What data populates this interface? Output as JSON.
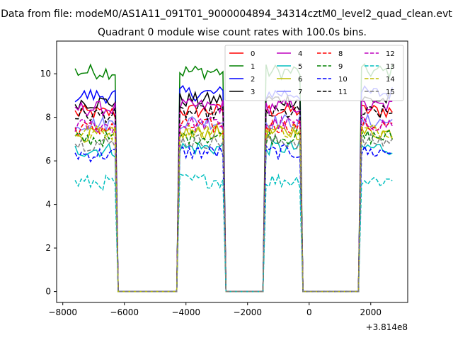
{
  "figure": {
    "suptitle": "Data from file: modeM0/AS1A11_091T01_9000004894_34314cztM0_level2_quad_clean.evt"
  },
  "chart_data": {
    "type": "line",
    "title": "Quadrant 0 module wise count rates with 100.0s bins.",
    "xlabel": "",
    "ylabel": "",
    "x_offset_label": "+3.814e8",
    "xlim": [
      -8200,
      3200
    ],
    "ylim": [
      -0.5,
      11.5
    ],
    "x_ticks": [
      -8000,
      -6000,
      -4000,
      -2000,
      0,
      2000
    ],
    "x_tick_labels": [
      "−8000",
      "−6000",
      "−4000",
      "−2000",
      "0",
      "2000"
    ],
    "y_ticks": [
      0,
      2,
      4,
      6,
      8,
      10
    ],
    "y_tick_labels": [
      "0",
      "2",
      "4",
      "6",
      "8",
      "10"
    ],
    "bin_width": 100,
    "segments": [
      [
        -7600,
        -6300
      ],
      [
        -4200,
        -2800
      ],
      [
        -1400,
        -300
      ],
      [
        1700,
        2700
      ]
    ],
    "legend": {
      "position": "top-right",
      "columns": 4
    },
    "series": [
      {
        "name": "0",
        "color": "#ff0000",
        "style": "solid",
        "level": 8.2
      },
      {
        "name": "1",
        "color": "#008000",
        "style": "solid",
        "level": 10.0
      },
      {
        "name": "2",
        "color": "#0000ff",
        "style": "solid",
        "level": 9.0
      },
      {
        "name": "3",
        "color": "#000000",
        "style": "solid",
        "level": 8.7
      },
      {
        "name": "4",
        "color": "#bf00bf",
        "style": "solid",
        "level": 8.4
      },
      {
        "name": "5",
        "color": "#00bfbf",
        "style": "solid",
        "level": 6.5
      },
      {
        "name": "6",
        "color": "#bfbf00",
        "style": "solid",
        "level": 7.2
      },
      {
        "name": "7",
        "color": "#7f7fff",
        "style": "solid",
        "level": 7.7
      },
      {
        "name": "8",
        "color": "#ff0000",
        "style": "dashed",
        "level": 7.5
      },
      {
        "name": "9",
        "color": "#008000",
        "style": "dashed",
        "level": 7.0
      },
      {
        "name": "10",
        "color": "#0000ff",
        "style": "dashed",
        "level": 6.3
      },
      {
        "name": "11",
        "color": "#000000",
        "style": "dashed",
        "level": 8.1
      },
      {
        "name": "12",
        "color": "#bf00bf",
        "style": "dashed",
        "level": 7.6
      },
      {
        "name": "13",
        "color": "#00bfbf",
        "style": "dashed",
        "level": 5.0
      },
      {
        "name": "14",
        "color": "#bfbf00",
        "style": "dashed",
        "level": 7.3
      },
      {
        "name": "15",
        "color": "#808080",
        "style": "dashed",
        "level": 6.8
      }
    ]
  }
}
